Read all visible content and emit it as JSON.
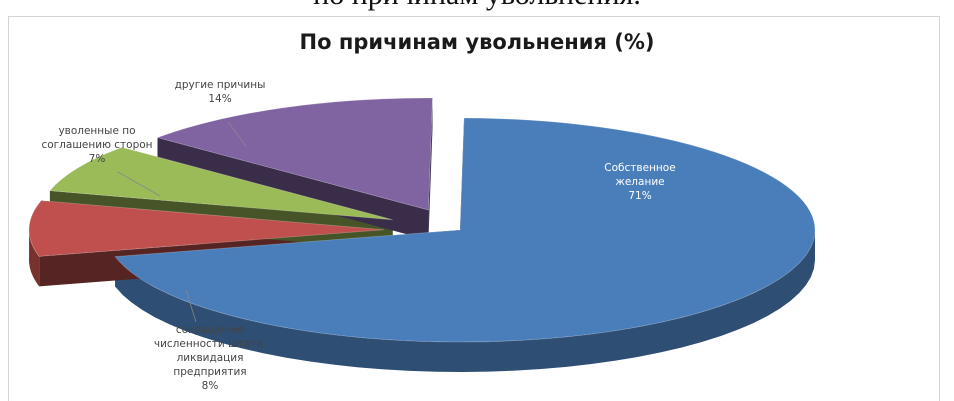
{
  "document": {
    "heading": "по причинам увольнения."
  },
  "chart_data": {
    "type": "pie",
    "title": "По причинам увольнения (%)",
    "style": "3d-exploded",
    "slices": [
      {
        "label": "Собственное\nжелание",
        "value": 71,
        "value_text": "71%",
        "color": "#4a7ebb"
      },
      {
        "label": "сокращение\nчисленности штата,\nликвидация\nпредприятия",
        "value": 8,
        "value_text": "8%",
        "color": "#c0504d"
      },
      {
        "label": "уволенные по\nсоглашению сторон",
        "value": 7,
        "value_text": "7%",
        "color": "#9bbb59"
      },
      {
        "label": "другие причины",
        "value": 14,
        "value_text": "14%",
        "color": "#8064a2"
      }
    ]
  }
}
